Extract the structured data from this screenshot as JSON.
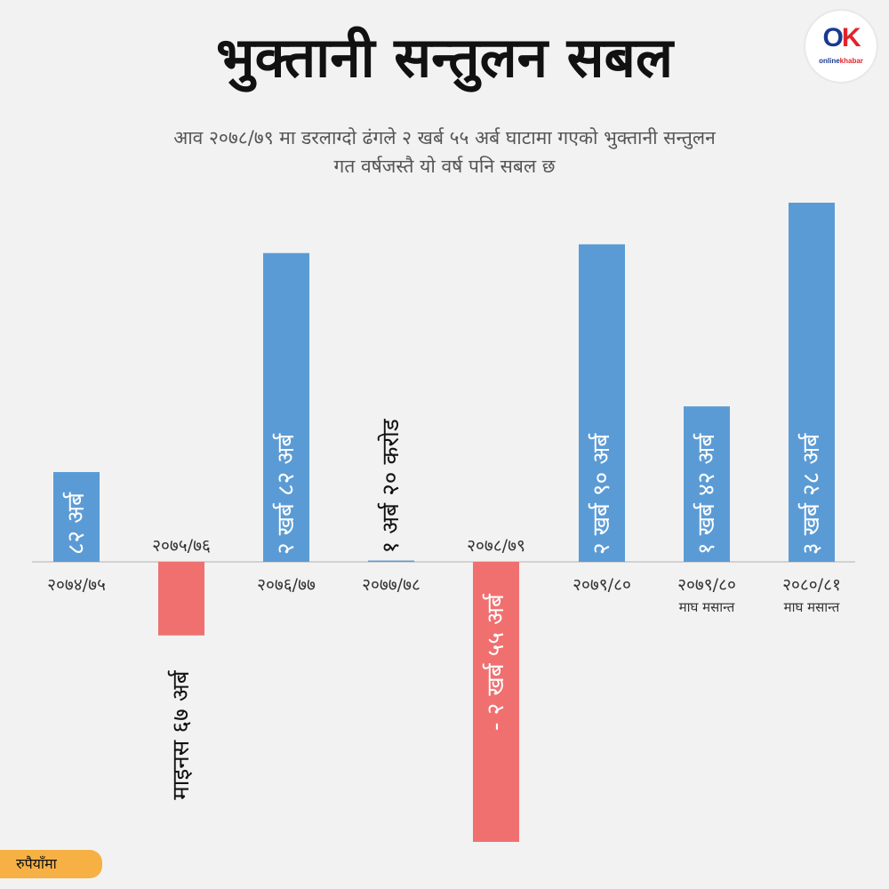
{
  "header": {
    "title": "भुक्तानी सन्तुलन सबल",
    "subtitle_line1": "आव २०७८/७९ मा डरलाग्दो ढंगले २ खर्ब ५५ अर्ब घाटामा गएको भुक्तानी सन्तुलन",
    "subtitle_line2": "गत वर्षजस्तै यो वर्ष पनि सबल छ"
  },
  "logo": {
    "mark_o": "O",
    "mark_k": "K",
    "brand_online": "online",
    "brand_khabar": "khabar"
  },
  "unit_label": "रुपैयाँमा",
  "colors": {
    "positive": "#5b9bd5",
    "negative": "#f07070",
    "background": "#f2f2f2",
    "badge": "#f6b043"
  },
  "chart_data": {
    "type": "bar",
    "unit": "रुपैयाँमा",
    "categories": [
      {
        "line1": "२०७४/७५",
        "line2": ""
      },
      {
        "line1": "२०७५/७६",
        "line2": ""
      },
      {
        "line1": "२०७६/७७",
        "line2": ""
      },
      {
        "line1": "२०७७/७८",
        "line2": ""
      },
      {
        "line1": "२०७८/७९",
        "line2": ""
      },
      {
        "line1": "२०७९/८०",
        "line2": ""
      },
      {
        "line1": "२०७९/८०",
        "line2": "माघ मसान्त"
      },
      {
        "line1": "२०८०/८१",
        "line2": "माघ मसान्त"
      }
    ],
    "values_arba": [
      82,
      -67,
      282,
      1.2,
      -255,
      290,
      142,
      328
    ],
    "value_labels": [
      "८२ अर्ब",
      "माइनस ६७ अर्ब",
      "२ खर्ब ८२ अर्ब",
      "१ अर्ब २० करोड",
      "- २ खर्ब ५५ अर्ब",
      "२ खर्ब ९० अर्ब",
      "१ खर्ब ४२ अर्ब",
      "३ खर्ब २८ अर्ब"
    ],
    "ylim": [
      -255,
      328
    ]
  }
}
